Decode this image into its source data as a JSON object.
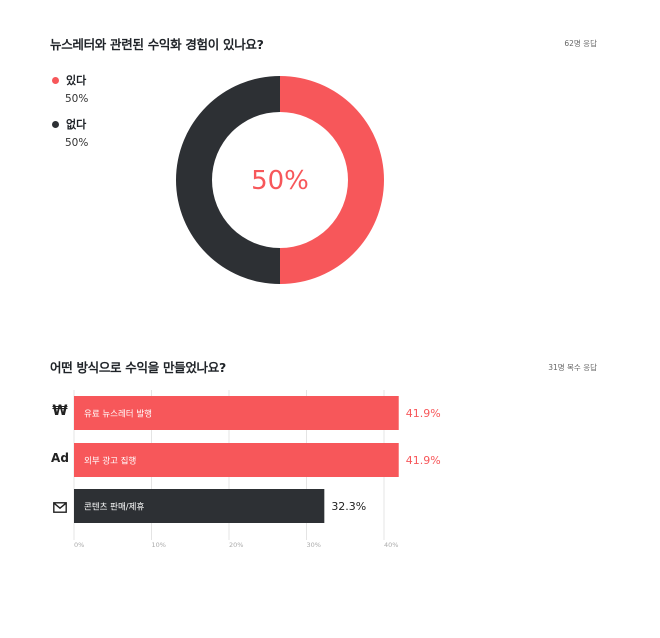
{
  "survey1": {
    "title": "뉴스레터와 관련된 수익화 경험이 있나요?",
    "responses": "62명 응답"
  },
  "survey2": {
    "title": "어떤 방식으로 수익을 만들었나요?",
    "responses": "31명 복수 응답"
  },
  "chart_data": [
    {
      "type": "pie",
      "variant": "donut",
      "center_label": "50%",
      "slices": [
        {
          "label": "있다",
          "value": 50,
          "display": "50%",
          "color": "#f7575a"
        },
        {
          "label": "없다",
          "value": 50,
          "display": "50%",
          "color": "#2d3034"
        }
      ]
    },
    {
      "type": "bar",
      "orientation": "horizontal",
      "categories": [
        "유료 뉴스레터 발행",
        "외부 광고 집행",
        "콘텐츠 판매/제휴"
      ],
      "icons": [
        "won-icon",
        "ad-icon",
        "mail-icon"
      ],
      "values": [
        41.9,
        41.9,
        32.3
      ],
      "value_labels": [
        "41.9%",
        "41.9%",
        "32.3%"
      ],
      "colors": [
        "#f7575a",
        "#f7575a",
        "#2d3034"
      ],
      "value_label_colors": [
        "#f7575a",
        "#f7575a",
        "#222222"
      ],
      "xlim": [
        0,
        40
      ],
      "xticks": [
        "0%",
        "10%",
        "20%",
        "30%",
        "40%"
      ],
      "grid": true
    }
  ]
}
